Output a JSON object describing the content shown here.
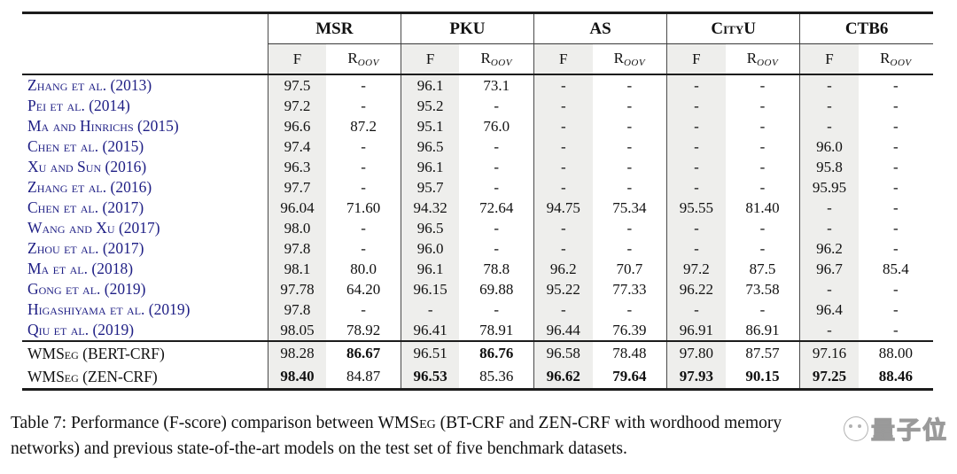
{
  "table": {
    "datasets": [
      {
        "name": "MSR"
      },
      {
        "name": "PKU"
      },
      {
        "name": "AS"
      },
      {
        "name": "CityU"
      },
      {
        "name": "CTB6"
      }
    ],
    "subheader": {
      "f": "F",
      "r_base": "R",
      "r_sub": "OOV"
    },
    "rows": [
      {
        "label": "Zhang et al. (2013)",
        "values": [
          "97.5",
          "-",
          "96.1",
          "73.1",
          "-",
          "-",
          "-",
          "-",
          "-",
          "-"
        ]
      },
      {
        "label": "Pei et al. (2014)",
        "values": [
          "97.2",
          "-",
          "95.2",
          "-",
          "-",
          "-",
          "-",
          "-",
          "-",
          "-"
        ]
      },
      {
        "label": "Ma and Hinrichs (2015)",
        "values": [
          "96.6",
          "87.2",
          "95.1",
          "76.0",
          "-",
          "-",
          "-",
          "-",
          "-",
          "-"
        ]
      },
      {
        "label": "Chen et al. (2015)",
        "values": [
          "97.4",
          "-",
          "96.5",
          "-",
          "-",
          "-",
          "-",
          "-",
          "96.0",
          "-"
        ]
      },
      {
        "label": "Xu and Sun (2016)",
        "values": [
          "96.3",
          "-",
          "96.1",
          "-",
          "-",
          "-",
          "-",
          "-",
          "95.8",
          "-"
        ]
      },
      {
        "label": "Zhang et al. (2016)",
        "values": [
          "97.7",
          "-",
          "95.7",
          "-",
          "-",
          "-",
          "-",
          "-",
          "95.95",
          "-"
        ]
      },
      {
        "label": "Chen et al. (2017)",
        "values": [
          "96.04",
          "71.60",
          "94.32",
          "72.64",
          "94.75",
          "75.34",
          "95.55",
          "81.40",
          "-",
          "-"
        ]
      },
      {
        "label": "Wang and Xu (2017)",
        "values": [
          "98.0",
          "-",
          "96.5",
          "-",
          "-",
          "-",
          "-",
          "-",
          "-",
          "-"
        ]
      },
      {
        "label": "Zhou et al. (2017)",
        "values": [
          "97.8",
          "-",
          "96.0",
          "-",
          "-",
          "-",
          "-",
          "-",
          "96.2",
          "-"
        ]
      },
      {
        "label": "Ma et al. (2018)",
        "values": [
          "98.1",
          "80.0",
          "96.1",
          "78.8",
          "96.2",
          "70.7",
          "97.2",
          "87.5",
          "96.7",
          "85.4"
        ]
      },
      {
        "label": "Gong et al. (2019)",
        "values": [
          "97.78",
          "64.20",
          "96.15",
          "69.88",
          "95.22",
          "77.33",
          "96.22",
          "73.58",
          "-",
          "-"
        ]
      },
      {
        "label": "Higashiyama et al. (2019)",
        "values": [
          "97.8",
          "-",
          "-",
          "-",
          "-",
          "-",
          "-",
          "-",
          "96.4",
          "-"
        ]
      },
      {
        "label": "Qiu et al. (2019)",
        "values": [
          "98.05",
          "78.92",
          "96.41",
          "78.91",
          "96.44",
          "76.39",
          "96.91",
          "86.91",
          "-",
          "-"
        ]
      }
    ],
    "summary_rows": [
      {
        "label": "WMSeg (BERT-CRF)",
        "values": [
          "98.28",
          "86.67",
          "96.51",
          "86.76",
          "96.58",
          "78.48",
          "97.80",
          "87.57",
          "97.16",
          "88.00"
        ],
        "bold": [
          false,
          true,
          false,
          true,
          false,
          false,
          false,
          false,
          false,
          false
        ]
      },
      {
        "label": "WMSeg (ZEN-CRF)",
        "values": [
          "98.40",
          "84.87",
          "96.53",
          "85.36",
          "96.62",
          "79.64",
          "97.93",
          "90.15",
          "97.25",
          "88.46"
        ],
        "bold": [
          true,
          false,
          true,
          false,
          true,
          true,
          true,
          true,
          true,
          true
        ]
      }
    ]
  },
  "caption": {
    "text_before": "Table 7: Performance (F-score) comparison between ",
    "model_name": "WMSeg",
    "text_after": " (BT-CRF and ZEN-CRF with wordhood memory",
    "line2": "networks) and previous state-of-the-art models on the test set of five benchmark datasets."
  },
  "watermark": {
    "text": "量子位"
  },
  "colors": {
    "citation_blue": "#1f1f85",
    "shade_gray": "#eeeeec",
    "rule_black": "#1c1c1c"
  }
}
